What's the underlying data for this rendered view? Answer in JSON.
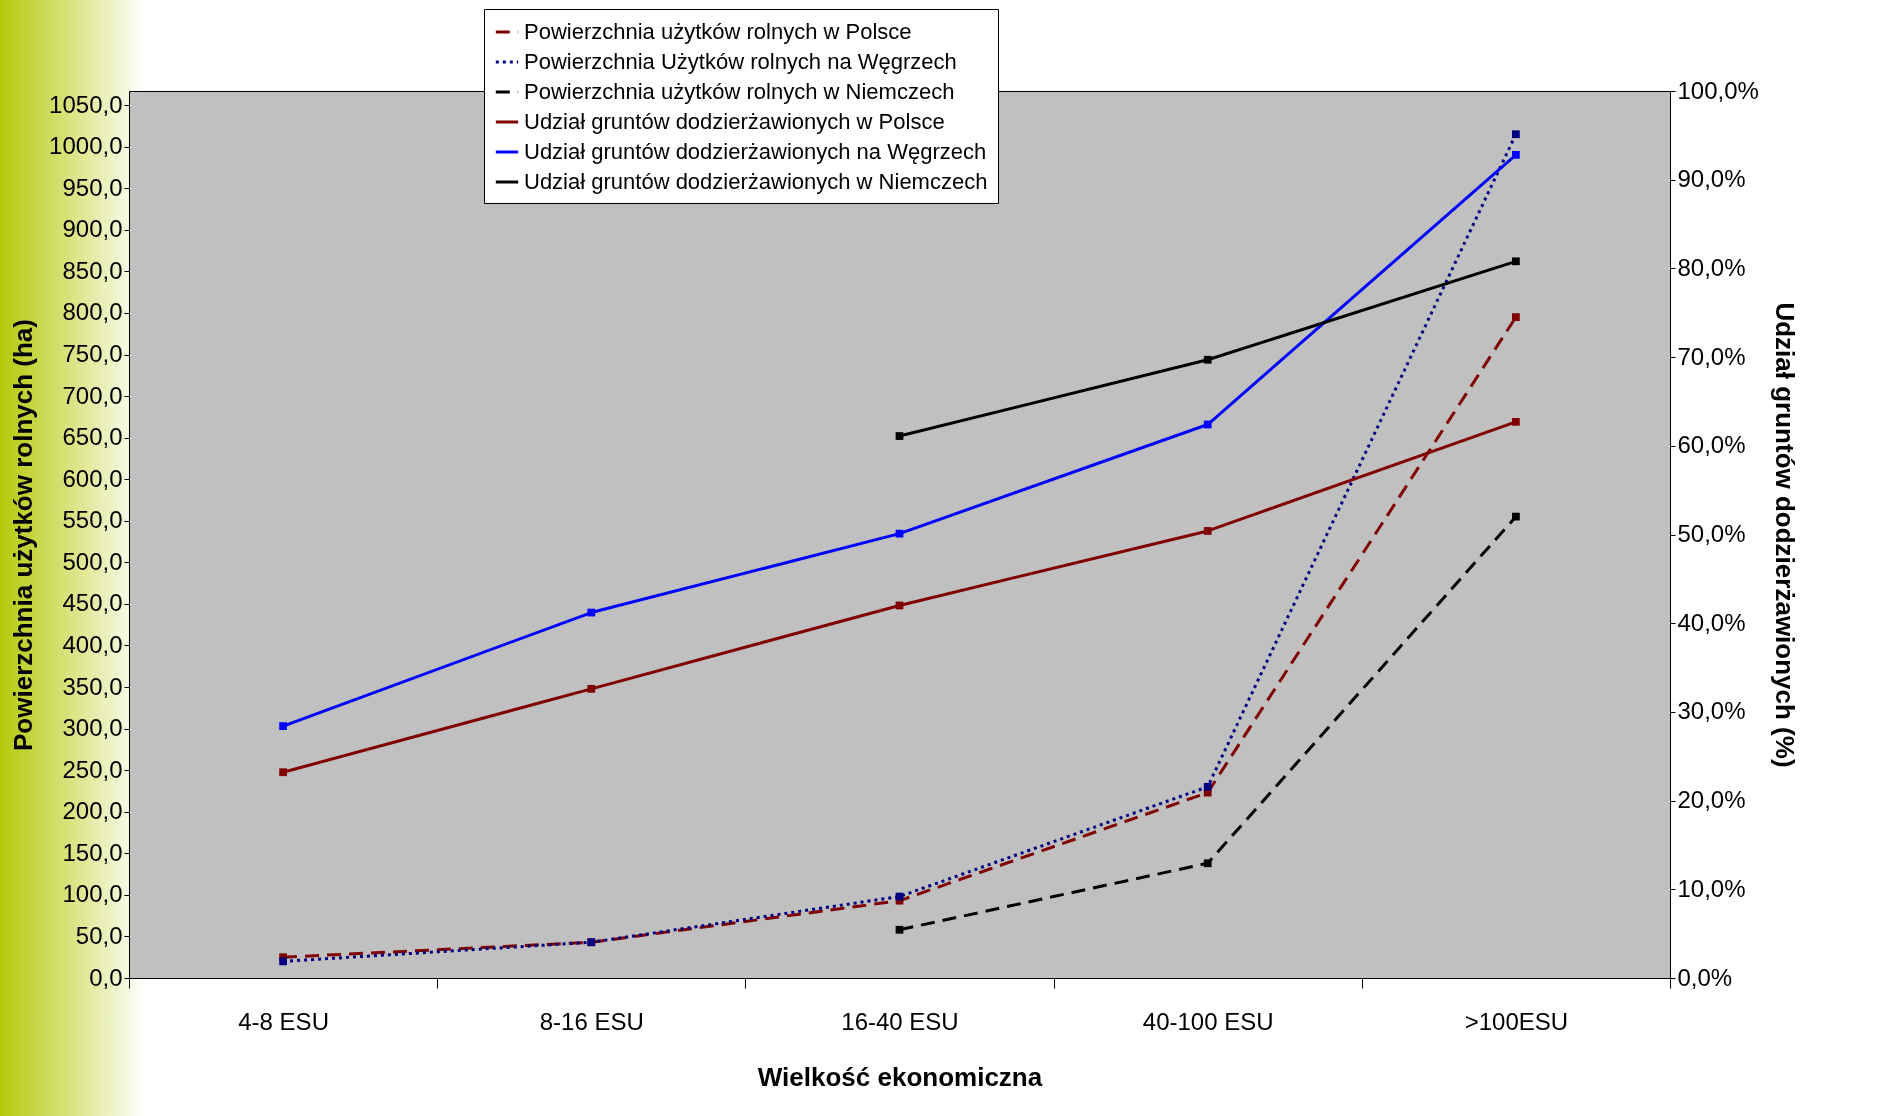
{
  "chart_data": {
    "type": "line",
    "xlabel": "Wielkość ekonomiczna",
    "ylabel": "Powierzchnia użytków rolnych (ha)",
    "y2label": "Udział gruntów dodzierżawionych (%)",
    "categories": [
      "4-8 ESU",
      "8-16 ESU",
      "16-40 ESU",
      "40-100 ESU",
      ">100ESU"
    ],
    "series": [
      {
        "name": "Powierzchnia użytków rolnych w Polsce",
        "color": "#800000",
        "line_style": "dashed",
        "values": [
          25,
          43,
          93,
          223,
          795
        ]
      },
      {
        "name": "Powierzchnia Użytków rolnych na Węgrzech",
        "color": "#000080",
        "line_style": "dotted",
        "values": [
          20,
          43,
          98,
          230,
          1015
        ]
      },
      {
        "name": "Powierzchnia użytków rolnych w Niemczech",
        "color": "#000000",
        "line_style": "dashed",
        "values": [
          null,
          null,
          58,
          138,
          555
        ]
      },
      {
        "name": "Udział gruntów dodzierżawionych w Polsce",
        "color": "#800000",
        "axis": "y2",
        "values": [
          23.2,
          32.6,
          42.0,
          50.4,
          62.7
        ]
      },
      {
        "name": "Udział gruntów dodzierżawionych na Węgrzech",
        "color": "#0000ff",
        "axis": "y2",
        "values": [
          28.4,
          41.2,
          50.1,
          62.4,
          92.8
        ]
      },
      {
        "name": "Udział gruntów dodzierżawionych w Niemczech",
        "color": "#000000",
        "axis": "y2",
        "values": [
          null,
          null,
          61.1,
          69.7,
          80.8
        ]
      }
    ],
    "ylim": [
      0,
      1067
    ],
    "yticks": [
      {
        "value": 0,
        "label": "0,0"
      },
      {
        "value": 50,
        "label": "50,0"
      },
      {
        "value": 100,
        "label": "100,0"
      },
      {
        "value": 150,
        "label": "150,0"
      },
      {
        "value": 200,
        "label": "200,0"
      },
      {
        "value": 250,
        "label": "250,0"
      },
      {
        "value": 300,
        "label": "300,0"
      },
      {
        "value": 350,
        "label": "350,0"
      },
      {
        "value": 400,
        "label": "400,0"
      },
      {
        "value": 450,
        "label": "450,0"
      },
      {
        "value": 500,
        "label": "500,0"
      },
      {
        "value": 550,
        "label": "550,0"
      },
      {
        "value": 600,
        "label": "600,0"
      },
      {
        "value": 650,
        "label": "650,0"
      },
      {
        "value": 700,
        "label": "700,0"
      },
      {
        "value": 750,
        "label": "750,0"
      },
      {
        "value": 800,
        "label": "800,0"
      },
      {
        "value": 850,
        "label": "850,0"
      },
      {
        "value": 900,
        "label": "900,0"
      },
      {
        "value": 950,
        "label": "950,0"
      },
      {
        "value": 1000,
        "label": "1000,0"
      },
      {
        "value": 1050,
        "label": "1050,0"
      }
    ],
    "y2lim": [
      0,
      100
    ],
    "y2ticks": [
      {
        "value": 0,
        "label": "0,0%"
      },
      {
        "value": 10,
        "label": "10,0%"
      },
      {
        "value": 20,
        "label": "20,0%"
      },
      {
        "value": 30,
        "label": "30,0%"
      },
      {
        "value": 40,
        "label": "40,0%"
      },
      {
        "value": 50,
        "label": "50,0%"
      },
      {
        "value": 60,
        "label": "60,0%"
      },
      {
        "value": 70,
        "label": "70,0%"
      },
      {
        "value": 80,
        "label": "80,0%"
      },
      {
        "value": 90,
        "label": "90,0%"
      },
      {
        "value": 100,
        "label": "100,0%"
      }
    ],
    "grid": false,
    "legend": "top",
    "marker": "square"
  }
}
